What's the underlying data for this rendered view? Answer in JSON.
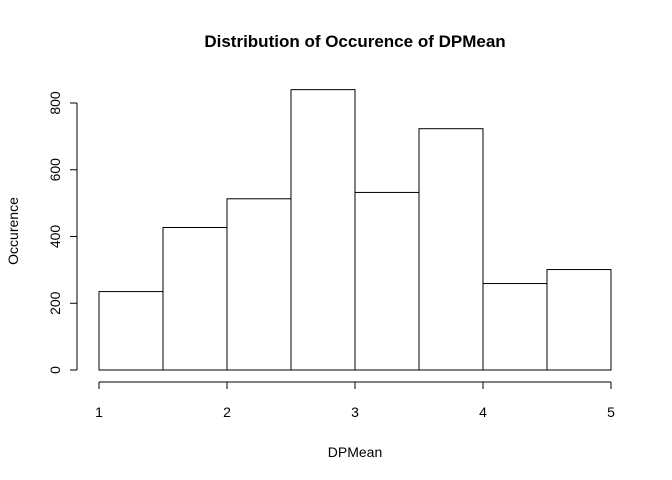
{
  "chart_data": {
    "type": "bar",
    "title": "Distribution of Occurence of DPMean",
    "xlabel": "DPMean",
    "ylabel": "Occurence",
    "bin_edges": [
      1.0,
      1.5,
      2.0,
      2.5,
      3.0,
      3.5,
      4.0,
      4.5,
      5.0
    ],
    "values": [
      235,
      427,
      513,
      840,
      532,
      723,
      259,
      301
    ],
    "xlim": [
      1,
      5
    ],
    "ylim": [
      0,
      800
    ],
    "x_ticks": [
      "1",
      "2",
      "3",
      "4",
      "5"
    ],
    "y_ticks": [
      "0",
      "200",
      "400",
      "600",
      "800"
    ],
    "grid": false,
    "legend": "none",
    "bar_fill": "#ffffff",
    "bar_stroke": "#000000"
  }
}
